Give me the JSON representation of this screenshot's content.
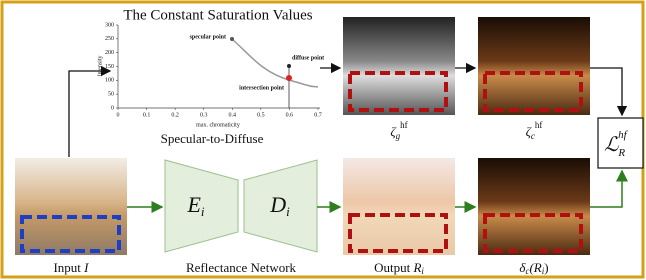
{
  "plot": {
    "title": "The Constant Saturation Values",
    "y_label": "Intensity",
    "x_label": "max. chromaticity",
    "xlim": [
      0,
      0.7
    ],
    "ylim": [
      0,
      300
    ],
    "xticks": [
      0,
      0.1,
      0.2,
      0.3,
      0.4,
      0.5,
      0.6,
      0.7
    ],
    "yticks": [
      0,
      50,
      100,
      150,
      200,
      250,
      300
    ],
    "annotations": [
      "specular point",
      "diffuse point",
      "intersection point"
    ],
    "caption": "Specular-to-Diffuse"
  },
  "zeta_g": {
    "symbol": "ζ",
    "sub": "g",
    "sup": "hf"
  },
  "zeta_c": {
    "symbol": "ζ",
    "sub": "c",
    "sup": "hf"
  },
  "loss": {
    "symbol": "ℒ",
    "sub": "R",
    "sup": "hf"
  },
  "input": {
    "text": "Input",
    "symbol": "I"
  },
  "network": {
    "label": "Reflectance Network",
    "encoder": {
      "symbol": "E",
      "sub": "i"
    },
    "decoder": {
      "symbol": "D",
      "sub": "i"
    }
  },
  "output": {
    "text": "Output",
    "symbol": "R",
    "sub": "i"
  },
  "delta": {
    "symbol": "δ",
    "sub": "c",
    "open": "(R",
    "arg_sub": "i",
    "close": ")"
  }
}
